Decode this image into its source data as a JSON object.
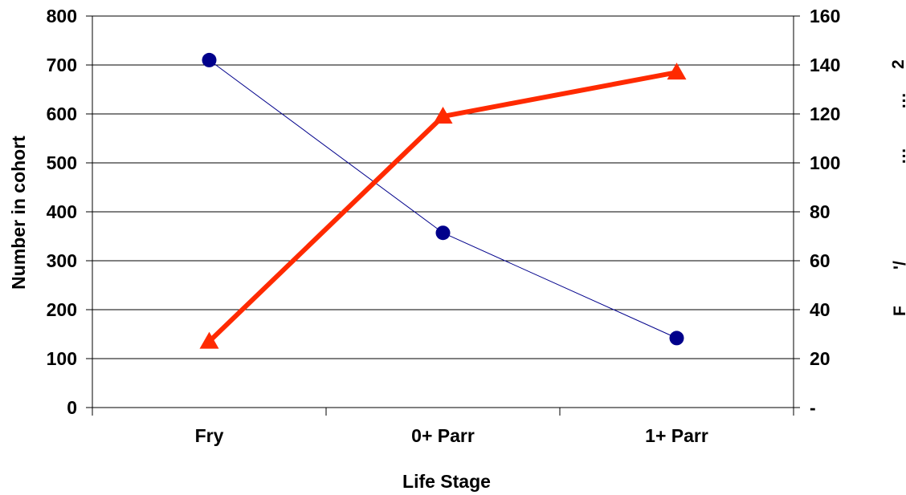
{
  "chart_data": {
    "type": "line",
    "categories": [
      "Fry",
      "0+ Parr",
      "1+ Parr"
    ],
    "xlabel": "Life Stage",
    "ylabel": "Number in cohort",
    "y2label_fragments": [
      "2",
      "…",
      "…",
      "'/",
      "F"
    ],
    "ylim": [
      0,
      800
    ],
    "y2lim": [
      0,
      160
    ],
    "yticks": [
      "0",
      "100",
      "200",
      "300",
      "400",
      "500",
      "600",
      "700",
      "800"
    ],
    "y2ticks": [
      "-",
      "20",
      "40",
      "60",
      "80",
      "100",
      "120",
      "140",
      "160"
    ],
    "grid": true,
    "series": [
      {
        "values": [
          710,
          357,
          142
        ],
        "axis": "left",
        "color": "#00008B",
        "marker": "circle"
      },
      {
        "values": [
          27,
          119,
          137
        ],
        "axis": "right",
        "color": "#FF2A00",
        "marker": "triangle"
      }
    ]
  }
}
